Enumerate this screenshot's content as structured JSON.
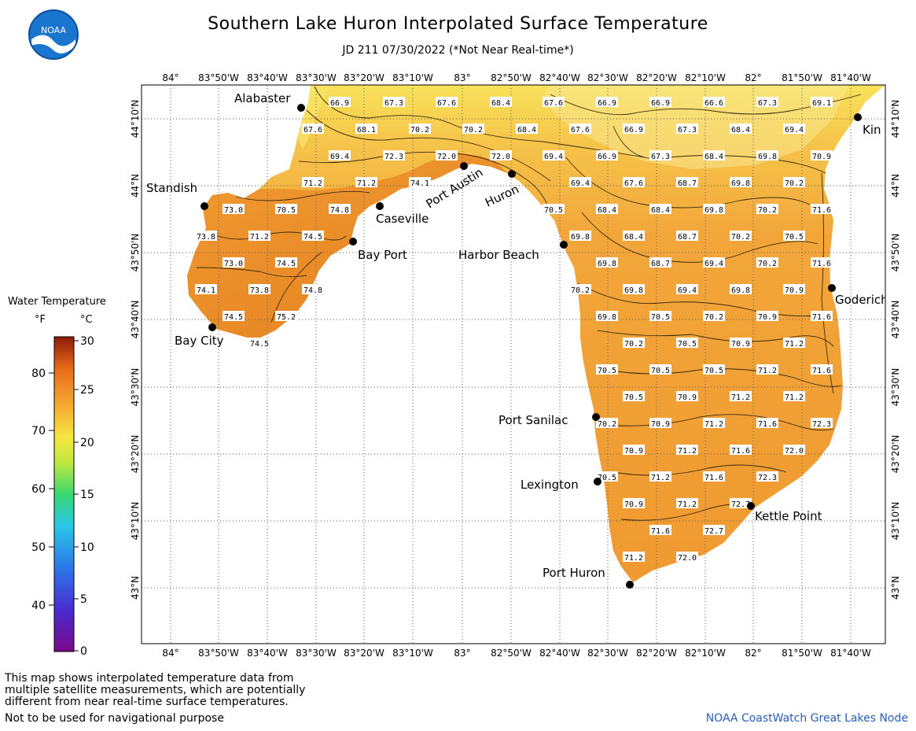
{
  "title": "Southern Lake Huron Interpolated Surface Temperature",
  "subtitle": "JD 211 07/30/2022 (*Not Near Real-time*)",
  "logo_text": "NOAA",
  "axes": {
    "lon_labels": [
      "84°",
      "83°50'W",
      "83°40'W",
      "83°30'W",
      "83°20'W",
      "83°10'W",
      "83°",
      "82°50'W",
      "82°40'W",
      "82°30'W",
      "82°20'W",
      "82°10'W",
      "82°",
      "81°50'W",
      "81°40'W"
    ],
    "lat_labels": [
      "44°10'N",
      "44°N",
      "43°50'N",
      "43°40'N",
      "43°30'N",
      "43°20'N",
      "43°10'N",
      "43°N"
    ]
  },
  "legend": {
    "title": "Water Temperature",
    "unit_f": "°F",
    "unit_c": "°C",
    "f_ticks": [
      "80",
      "70",
      "60",
      "50",
      "40"
    ],
    "c_ticks": [
      "30",
      "25",
      "20",
      "15",
      "10",
      "5",
      "0"
    ]
  },
  "places": [
    {
      "name": "Alabaster"
    },
    {
      "name": "Standish"
    },
    {
      "name": "Caseville"
    },
    {
      "name": "Port Austin"
    },
    {
      "name": "Huron"
    },
    {
      "name": "Bay Port"
    },
    {
      "name": "Harbor Beach"
    },
    {
      "name": "Bay City"
    },
    {
      "name": "Kin"
    },
    {
      "name": "Goderich"
    },
    {
      "name": "Port Sanilac"
    },
    {
      "name": "Lexington"
    },
    {
      "name": "Kettle Point"
    },
    {
      "name": "Port Huron"
    }
  ],
  "temperature_labels": [
    {
      "v": "66.9"
    },
    {
      "v": "67.3"
    },
    {
      "v": "67.6"
    },
    {
      "v": "68.4"
    },
    {
      "v": "67.6"
    },
    {
      "v": "66.9"
    },
    {
      "v": "66.9"
    },
    {
      "v": "66.6"
    },
    {
      "v": "67.3"
    },
    {
      "v": "69.1"
    },
    {
      "v": "67.6"
    },
    {
      "v": "68.1"
    },
    {
      "v": "70.2"
    },
    {
      "v": "70.2"
    },
    {
      "v": "68.4"
    },
    {
      "v": "67.6"
    },
    {
      "v": "66.9"
    },
    {
      "v": "67.3"
    },
    {
      "v": "68.4"
    },
    {
      "v": "69.4"
    },
    {
      "v": "69.4"
    },
    {
      "v": "72.3"
    },
    {
      "v": "72.0"
    },
    {
      "v": "72.0"
    },
    {
      "v": "69.4"
    },
    {
      "v": "66.9"
    },
    {
      "v": "67.3"
    },
    {
      "v": "68.4"
    },
    {
      "v": "69.8"
    },
    {
      "v": "70.9"
    },
    {
      "v": "71.2"
    },
    {
      "v": "71.2"
    },
    {
      "v": "74.1"
    },
    {
      "v": "69.4"
    },
    {
      "v": "67.6"
    },
    {
      "v": "68.7"
    },
    {
      "v": "69.8"
    },
    {
      "v": "70.2"
    },
    {
      "v": "73.0"
    },
    {
      "v": "70.5"
    },
    {
      "v": "74.8"
    },
    {
      "v": "70.5"
    },
    {
      "v": "68.4"
    },
    {
      "v": "68.4"
    },
    {
      "v": "69.8"
    },
    {
      "v": "70.2"
    },
    {
      "v": "71.6"
    },
    {
      "v": "73.8"
    },
    {
      "v": "71.2"
    },
    {
      "v": "74.5"
    },
    {
      "v": "69.8"
    },
    {
      "v": "68.4"
    },
    {
      "v": "68.7"
    },
    {
      "v": "70.2"
    },
    {
      "v": "70.5"
    },
    {
      "v": "73.0"
    },
    {
      "v": "74.5"
    },
    {
      "v": "69.8"
    },
    {
      "v": "68.7"
    },
    {
      "v": "69.4"
    },
    {
      "v": "70.2"
    },
    {
      "v": "71.6"
    },
    {
      "v": "74.1"
    },
    {
      "v": "73.8"
    },
    {
      "v": "74.8"
    },
    {
      "v": "70.2"
    },
    {
      "v": "69.8"
    },
    {
      "v": "69.4"
    },
    {
      "v": "69.8"
    },
    {
      "v": "70.9"
    },
    {
      "v": "74.5"
    },
    {
      "v": "75.2"
    },
    {
      "v": "69.8"
    },
    {
      "v": "70.5"
    },
    {
      "v": "70.2"
    },
    {
      "v": "70.9"
    },
    {
      "v": "71.6"
    },
    {
      "v": "74.5"
    },
    {
      "v": "70.2"
    },
    {
      "v": "70.5"
    },
    {
      "v": "70.9"
    },
    {
      "v": "71.2"
    },
    {
      "v": "70.5"
    },
    {
      "v": "70.5"
    },
    {
      "v": "70.5"
    },
    {
      "v": "71.2"
    },
    {
      "v": "71.6"
    },
    {
      "v": "70.5"
    },
    {
      "v": "70.9"
    },
    {
      "v": "71.2"
    },
    {
      "v": "71.2"
    },
    {
      "v": "70.2"
    },
    {
      "v": "70.9"
    },
    {
      "v": "71.2"
    },
    {
      "v": "71.6"
    },
    {
      "v": "72.3"
    },
    {
      "v": "70.9"
    },
    {
      "v": "71.2"
    },
    {
      "v": "71.6"
    },
    {
      "v": "72.0"
    },
    {
      "v": "70.5"
    },
    {
      "v": "71.2"
    },
    {
      "v": "71.6"
    },
    {
      "v": "72.3"
    },
    {
      "v": "70.9"
    },
    {
      "v": "71.2"
    },
    {
      "v": "72.7"
    },
    {
      "v": "71.6"
    },
    {
      "v": "72.7"
    },
    {
      "v": "71.2"
    },
    {
      "v": "72.0"
    }
  ],
  "footer": {
    "note_line1": "This map shows interpolated temperature data from",
    "note_line2": "multiple satellite measurements, which are potentially",
    "note_line3": "different from near real-time surface temperatures.",
    "nav": "Not to be used for navigational purpose",
    "credit": "NOAA CoastWatch Great Lakes Node"
  }
}
